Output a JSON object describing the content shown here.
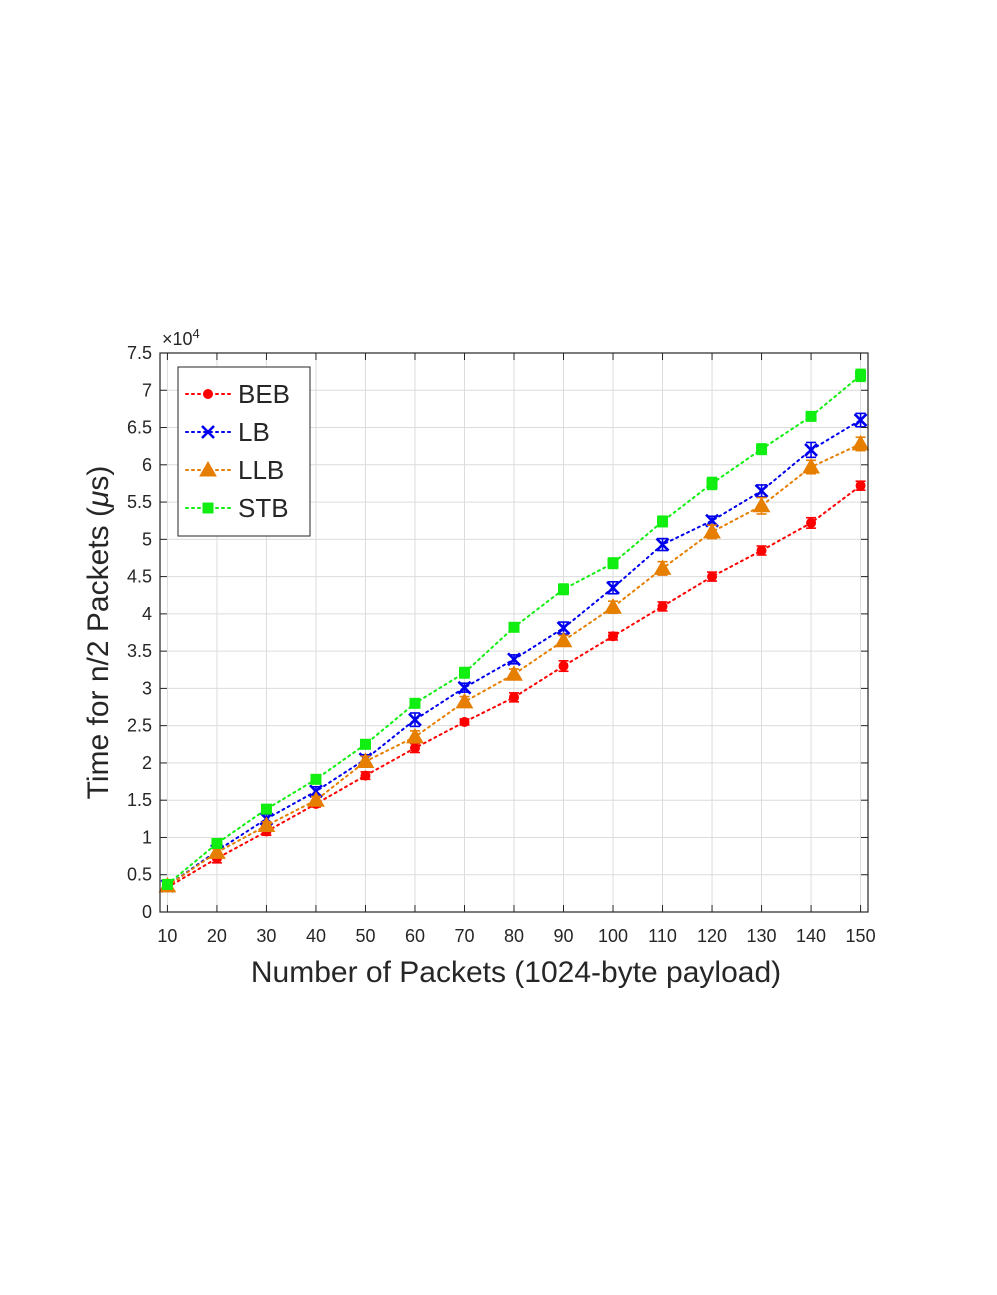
{
  "chart_data": {
    "type": "line",
    "xlabel": "Number of Packets (1024-byte payload)",
    "ylabel_prefix": "Time for n/2 Packets (",
    "ylabel_mu": "μ",
    "ylabel_suffix": "s)",
    "y_exponent_base": "×10",
    "y_exponent_power": "4",
    "x": [
      10,
      20,
      30,
      40,
      50,
      60,
      70,
      80,
      90,
      100,
      110,
      120,
      130,
      140,
      150
    ],
    "xlim": [
      8.5,
      151.5
    ],
    "ylim": [
      0,
      75000
    ],
    "x_ticks": [
      "10",
      "20",
      "30",
      "40",
      "50",
      "60",
      "70",
      "80",
      "90",
      "100",
      "110",
      "120",
      "130",
      "140",
      "150"
    ],
    "y_ticks": [
      "0",
      "0.5",
      "1",
      "1.5",
      "2",
      "2.5",
      "3",
      "3.5",
      "4",
      "4.5",
      "5",
      "5.5",
      "6",
      "6.5",
      "7",
      "7.5"
    ],
    "grid": true,
    "legend_position": "top-left",
    "series": [
      {
        "name": "BEB",
        "color": "#ff0000",
        "marker": "circle",
        "values": [
          3300,
          7200,
          10800,
          14500,
          18300,
          22000,
          25500,
          28800,
          33000,
          37000,
          41000,
          45000,
          48500,
          52200,
          57200
        ],
        "err": [
          400,
          600,
          500,
          400,
          500,
          600,
          400,
          600,
          700,
          500,
          600,
          600,
          600,
          700,
          600
        ]
      },
      {
        "name": "LB",
        "color": "#0000ee",
        "marker": "x",
        "values": [
          3500,
          8200,
          12500,
          16200,
          20500,
          25800,
          30100,
          33900,
          38100,
          43500,
          49300,
          52500,
          56500,
          62000,
          66000
        ],
        "err": [
          300,
          500,
          600,
          600,
          600,
          900,
          600,
          600,
          800,
          800,
          800,
          600,
          800,
          1000,
          900
        ]
      },
      {
        "name": "LLB",
        "color": "#e67e00",
        "marker": "triangle",
        "values": [
          3500,
          8000,
          11600,
          15000,
          20200,
          23500,
          28200,
          31900,
          36400,
          40900,
          46100,
          51000,
          54500,
          59700,
          62800
        ],
        "err": [
          300,
          500,
          500,
          500,
          700,
          800,
          700,
          700,
          700,
          800,
          900,
          900,
          1100,
          900,
          900
        ]
      },
      {
        "name": "STB",
        "color": "#11ee11",
        "marker": "square",
        "values": [
          3700,
          9200,
          13800,
          17800,
          22500,
          28000,
          32100,
          38200,
          43300,
          46800,
          52400,
          57500,
          62100,
          66500,
          72000
        ],
        "err": [
          400,
          500,
          500,
          500,
          600,
          600,
          700,
          600,
          700,
          700,
          700,
          800,
          700,
          600,
          800
        ]
      }
    ]
  }
}
